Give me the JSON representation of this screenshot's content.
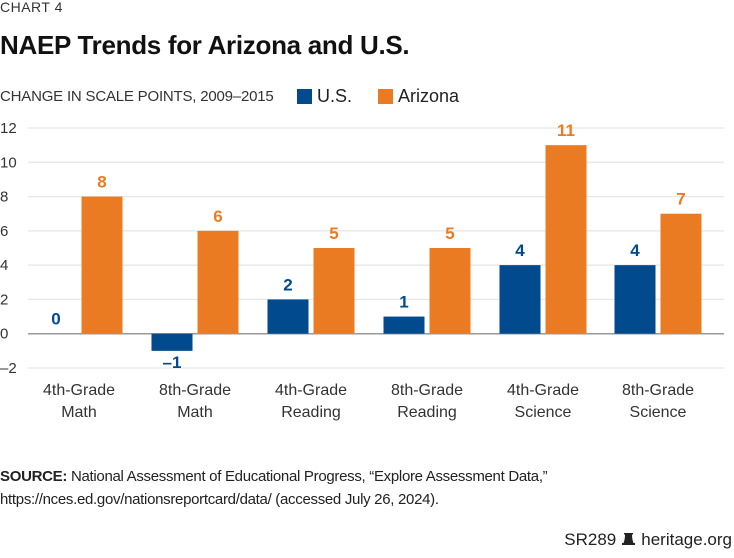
{
  "kicker": "CHART 4",
  "title": "NAEP Trends for Arizona and U.S.",
  "subtitle": "CHANGE IN SCALE POINTS, 2009–2015",
  "colors": {
    "us": "#004A8D",
    "arizona": "#EB7B23",
    "grid": "#E6E6E6",
    "axis": "#999999"
  },
  "chart_data": {
    "type": "bar",
    "title": "NAEP Trends for Arizona and U.S.",
    "ylabel": "CHANGE IN SCALE POINTS, 2009–2015",
    "xlabel": "",
    "ylim": [
      -2,
      12
    ],
    "yticks": [
      12,
      10,
      8,
      6,
      4,
      2,
      0,
      -2
    ],
    "ytick_labels": [
      "12",
      "10",
      "8",
      "6",
      "4",
      "2",
      "0",
      "–2"
    ],
    "grid": true,
    "legend": "top",
    "categories": [
      [
        "4th-Grade",
        "Math"
      ],
      [
        "8th-Grade",
        "Math"
      ],
      [
        "4th-Grade",
        "Reading"
      ],
      [
        "8th-Grade",
        "Reading"
      ],
      [
        "4th-Grade",
        "Science"
      ],
      [
        "8th-Grade",
        "Science"
      ]
    ],
    "series": [
      {
        "name": "U.S.",
        "color": "#004A8D",
        "values": [
          0,
          -1,
          2,
          1,
          4,
          4
        ],
        "labels": [
          "0",
          "–1",
          "2",
          "1",
          "4",
          "4"
        ]
      },
      {
        "name": "Arizona",
        "color": "#EB7B23",
        "values": [
          8,
          6,
          5,
          5,
          11,
          7
        ],
        "labels": [
          "8",
          "6",
          "5",
          "5",
          "11",
          "7"
        ]
      }
    ]
  },
  "source": {
    "label": "SOURCE:",
    "text": " National Assessment of Educational Progress, “Explore Assessment Data,” https://nces.ed.gov/nationsreportcard/data/ (accessed July 26, 2024)."
  },
  "footer": {
    "code": "SR289",
    "icon": "liberty-bell-icon",
    "site": "heritage.org"
  }
}
